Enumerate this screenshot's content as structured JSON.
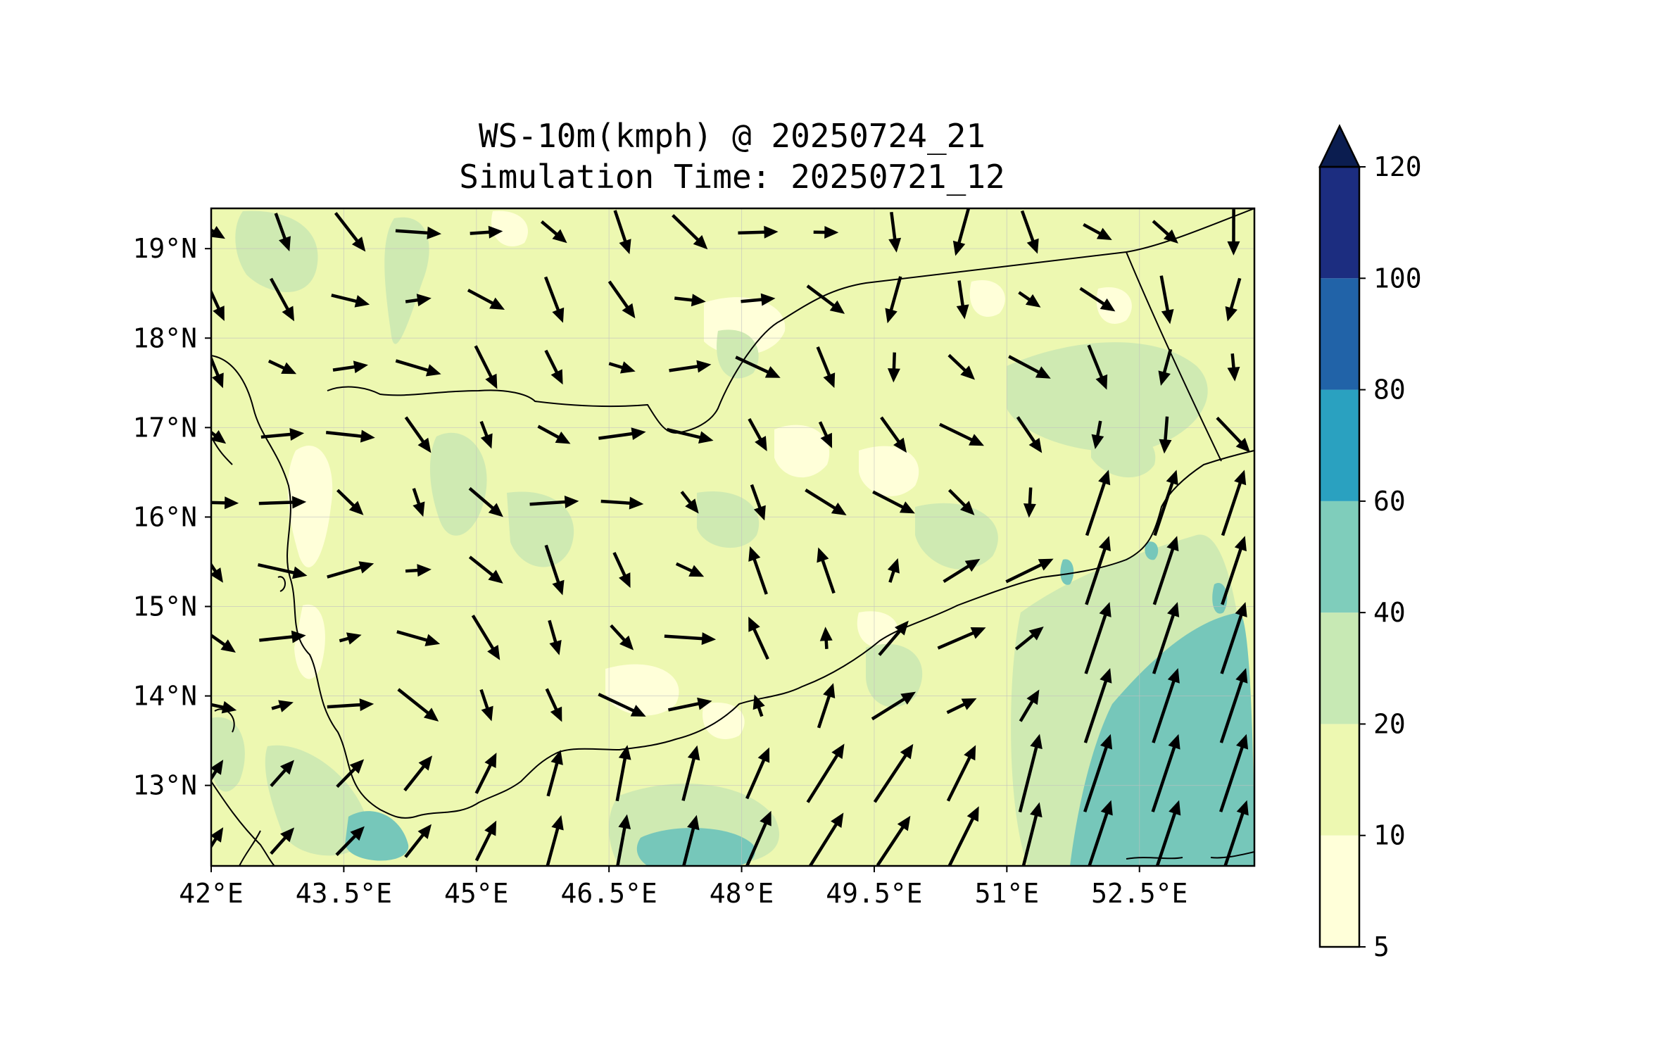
{
  "title": {
    "line1": "WS-10m(kmph) @ 20250724_21",
    "line2": "Simulation Time: 20250721_12"
  },
  "map": {
    "lon_range": [
      42.0,
      53.8
    ],
    "lat_range": [
      12.1,
      19.45
    ],
    "lon_ticks": [
      {
        "value": 42.0,
        "label": "42°E"
      },
      {
        "value": 43.5,
        "label": "43.5°E"
      },
      {
        "value": 45.0,
        "label": "45°E"
      },
      {
        "value": 46.5,
        "label": "46.5°E"
      },
      {
        "value": 48.0,
        "label": "48°E"
      },
      {
        "value": 49.5,
        "label": "49.5°E"
      },
      {
        "value": 51.0,
        "label": "51°E"
      },
      {
        "value": 52.5,
        "label": "52.5°E"
      }
    ],
    "lat_ticks": [
      {
        "value": 19,
        "label": "19°N"
      },
      {
        "value": 18,
        "label": "18°N"
      },
      {
        "value": 17,
        "label": "17°N"
      },
      {
        "value": 16,
        "label": "16°N"
      },
      {
        "value": 15,
        "label": "15°N"
      },
      {
        "value": 14,
        "label": "14°N"
      },
      {
        "value": 13,
        "label": "13°N"
      }
    ],
    "grid": true,
    "vector_field": "wind at 10 m"
  },
  "colorbar": {
    "levels": [
      "5",
      "10",
      "20",
      "40",
      "60",
      "80",
      "100",
      "120"
    ],
    "colors": [
      "#ffffd9",
      "#edf8b1",
      "#c7e9b4",
      "#7fcdbb",
      "#2aa1c0",
      "#2163a8",
      "#1c2d80"
    ],
    "extend_color": "#0b1d50",
    "extend": "max"
  },
  "colors": {
    "land_base": "#edf8b1",
    "calm": "#ffffd9",
    "moderate": "#cfeab2",
    "strong": "#76c7ba",
    "border": "#000000",
    "arrow": "#000000"
  }
}
